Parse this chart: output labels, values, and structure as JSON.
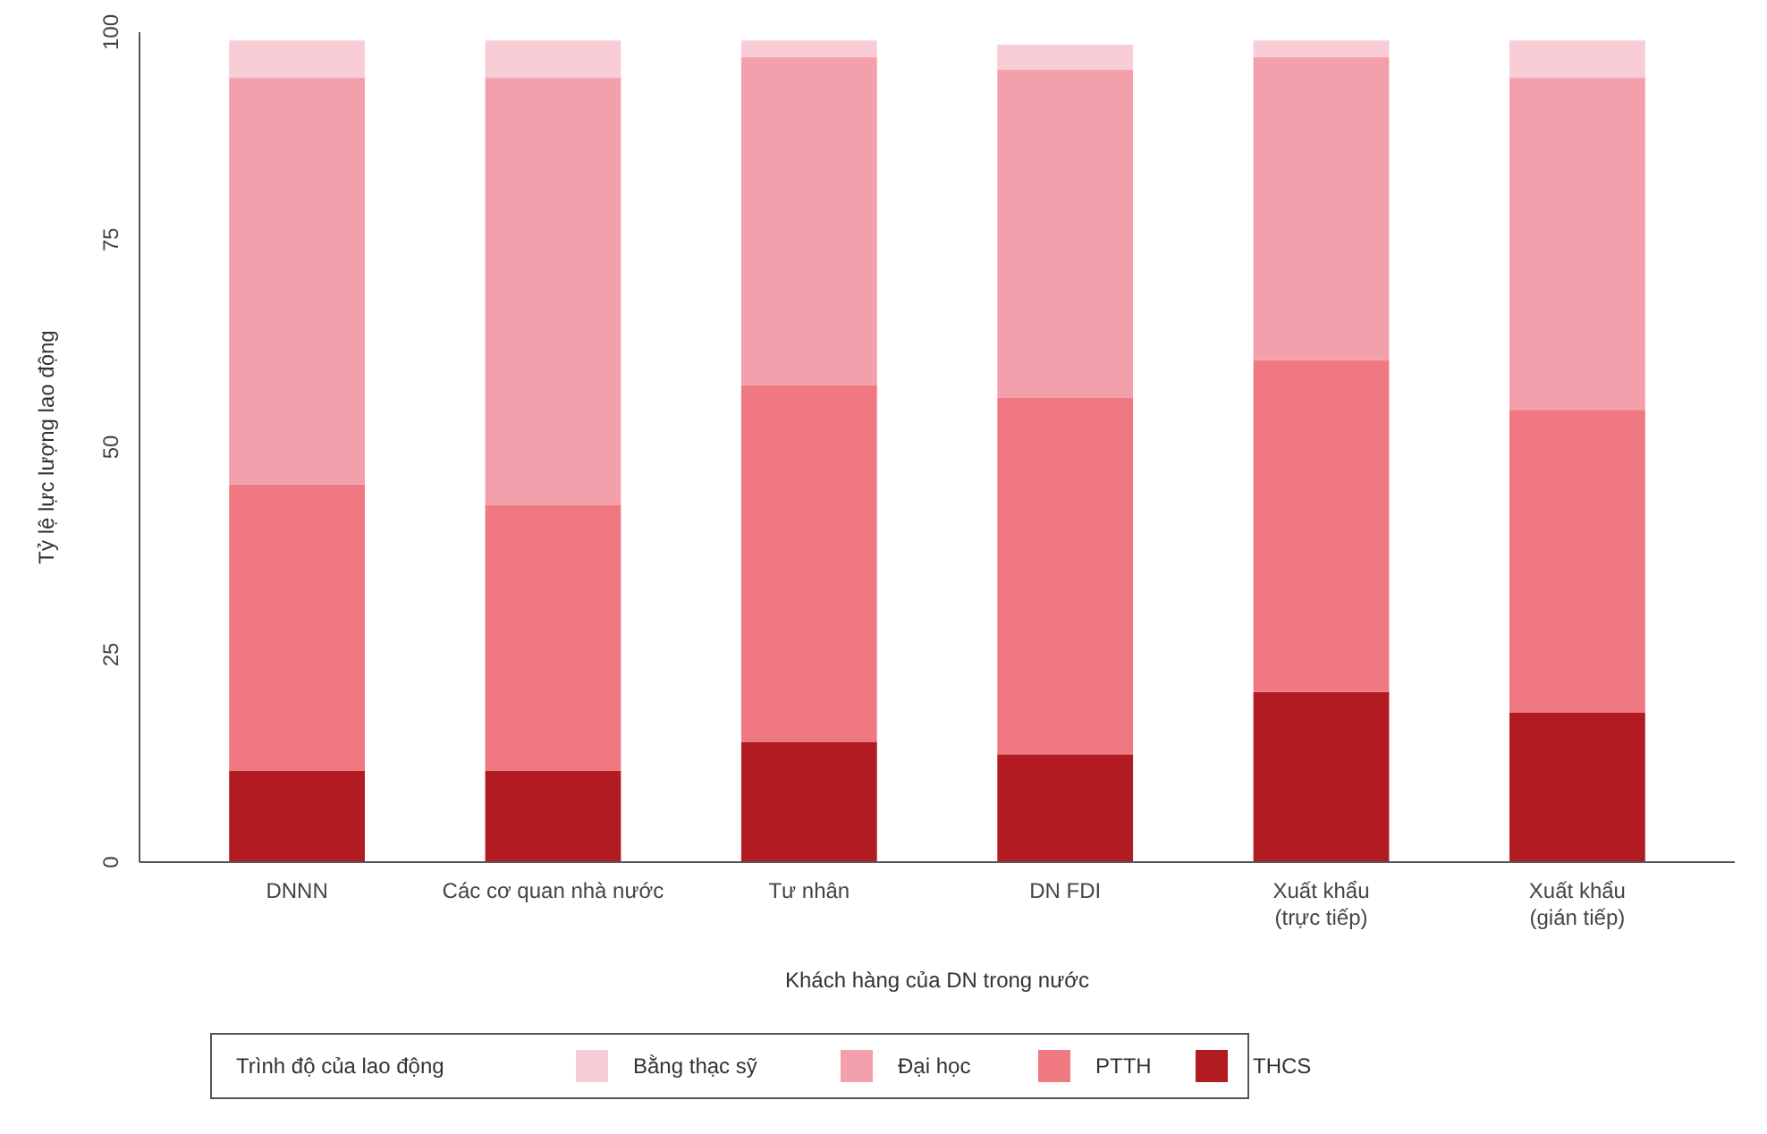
{
  "chart_data": {
    "type": "bar",
    "stacked": true,
    "xlabel": "Khách hàng của DN trong nước",
    "ylabel": "Tỷ lệ lực lượng lao động",
    "legend_title": "Trình độ của lao động",
    "legend": "bottom",
    "grid": false,
    "categories": [
      "DNNN",
      "Các cơ quan nhà nước",
      "Tư nhân",
      "DN FDI",
      "Xuất khẩu\n(trực tiếp)",
      "Xuất khẩu\n(gián tiếp)"
    ],
    "ylim": [
      0,
      100
    ],
    "yticks": [
      0,
      25,
      50,
      75,
      100
    ],
    "series": [
      {
        "name": "THCS",
        "color": "#b31b23",
        "values": [
          11,
          11,
          14.5,
          13,
          20.5,
          18
        ]
      },
      {
        "name": "PTTH",
        "color": "#f07880",
        "values": [
          34.5,
          32,
          43,
          43,
          40,
          36.5
        ]
      },
      {
        "name": "Đại học",
        "color": "#f4a0ac",
        "values": [
          49,
          51.5,
          39.5,
          39.5,
          36.5,
          40
        ]
      },
      {
        "name": "Bằng thạc sỹ",
        "color": "#f8cdd5",
        "values": [
          4.5,
          4.5,
          2,
          3,
          2,
          4.5
        ]
      }
    ]
  }
}
